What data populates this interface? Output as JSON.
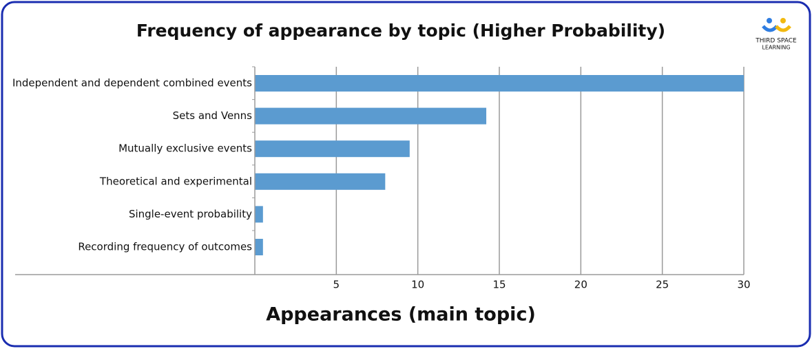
{
  "chart_data": {
    "type": "bar",
    "orientation": "horizontal",
    "title": "Frequency of appearance by topic (Higher Probability)",
    "x_label": "Appearances (main topic)",
    "categories": [
      "Independent and dependent combined events",
      "Sets and Venns",
      "Mutually exclusive events",
      "Theoretical and experimental",
      "Single-event probability",
      "Recording frequency of outcomes"
    ],
    "values": [
      30,
      14.2,
      9.5,
      8,
      0.5,
      0.5
    ],
    "color": "#5b9bd0",
    "xlim": [
      0,
      30
    ],
    "xticks": [
      5,
      10,
      15,
      20,
      25,
      30
    ],
    "grid": true
  },
  "logo": {
    "lines": [
      "THIRD SPACE",
      "LEARNING"
    ]
  }
}
